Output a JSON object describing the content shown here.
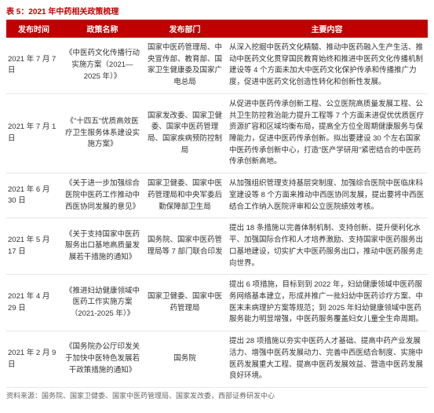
{
  "title": "表 5：2021 年中药相关政策梳理",
  "header_bg": "#c00000",
  "header_fg": "#ffffff",
  "title_color": "#c00000",
  "border_color": "#e6e6e6",
  "columns": [
    "发布时间",
    "政策名称",
    "发布部门",
    "主要内容"
  ],
  "rows": [
    {
      "date": "2021 年 7 月 7 日",
      "name": "《中医药文化传播行动实施方案（2021—2025 年）》",
      "dept": "国家中医药管理局、中央宣传部、教育部、国家卫生健康委及国家广电总局",
      "content": "从深入挖掘中医药文化精髓、推动中医药融入生产生活、推动中医药文化贯穿国民教育始终和推进中医药文化传播机制建设等 4 个方面未加大中医药文化保护传承和传播推广力度，促进中医药文化创造性转化和创新性发展。"
    },
    {
      "date": "2021 年 7 月 1 日",
      "name": "《\"十四五\"优质高效医疗卫生服务体系建设实施方案》",
      "dept": "国家发改委、国家卫健委、国家中医药管理局、国家疾病预防控制局",
      "content": "从促进中医药传承创新工程、公立医院高质量发展工程、公共卫生防控救治能力提升工程等 7 个方面未进促优优质医疗资源扩容和区域均衡布局，提高全方位全周期健康服务与保障能力，促进中医药传承创新。拟出要建设 30 个左右国家中医药传承创新中心，打造\"医产学研用\"紧密结合的中医药传承创新高地。"
    },
    {
      "date": "2021 年 6 月 30 日",
      "name": "《关于进一步加强综合医院中医药工作推动中西医协同发展的意见》",
      "dept": "国家卫健委、国家中医药管理局和中央军委后勤保障部卫生局",
      "content": "从加强组织管理支持基层突制度、加强综合医院中医临床科室建设等 8 个方面来推动中西医协同发展，提出要将中西医结合工作纳入医院评审和公立医院绩效考核。"
    },
    {
      "date": "2021 年 5 月 17 日",
      "name": "《关于支持国家中医药服务出口基地高质量发展若干措施的通知》",
      "dept": "国务院、国家中医药管理局等 7 部门联合印发",
      "content": "提出 18 条措施以完善体制机制、支持创新、提升便利化水平、加强国际合作和人才培养激励、支持国家中医药服务出口基地建设，切实扩大中医药服务出口，推动中医药服务走向世界。"
    },
    {
      "date": "2021 年 4 月 29 日",
      "name": "《推进妇幼健康领域中医药工作实施方案（2021-2025 年）》",
      "dept": "国家卫健委、国家中医药管理局",
      "content": "提出 6 项措施，目标到到 2022 年，妇幼健康领域中医药服务网络基本建立，形成并推广一批妇幼中医药诊疗方案、中医末未病理护方案等规范；到 2025 年妇幼健康领域中医药服务能力明显增强，中医药服务覆盖妇女儿童全生命周期。"
    },
    {
      "date": "2021 年 2 月 9 日",
      "name": "《国务院办公厅印发关于加快中医特色发展若干政策措施的通知》",
      "dept": "国务院",
      "content": "提出 28 项措施以夯实中医药人才基础、提高中药产业发展活力、增强中医药发展动力、完善中西医结合制度、实施中医药发展重大工程、提高中医药发展效益、营造中医药发展良好环境。"
    }
  ],
  "footer": "资料来源：国务院、国家卫健委、国家中医药管理局、国家发改委，西部证券研发中心"
}
